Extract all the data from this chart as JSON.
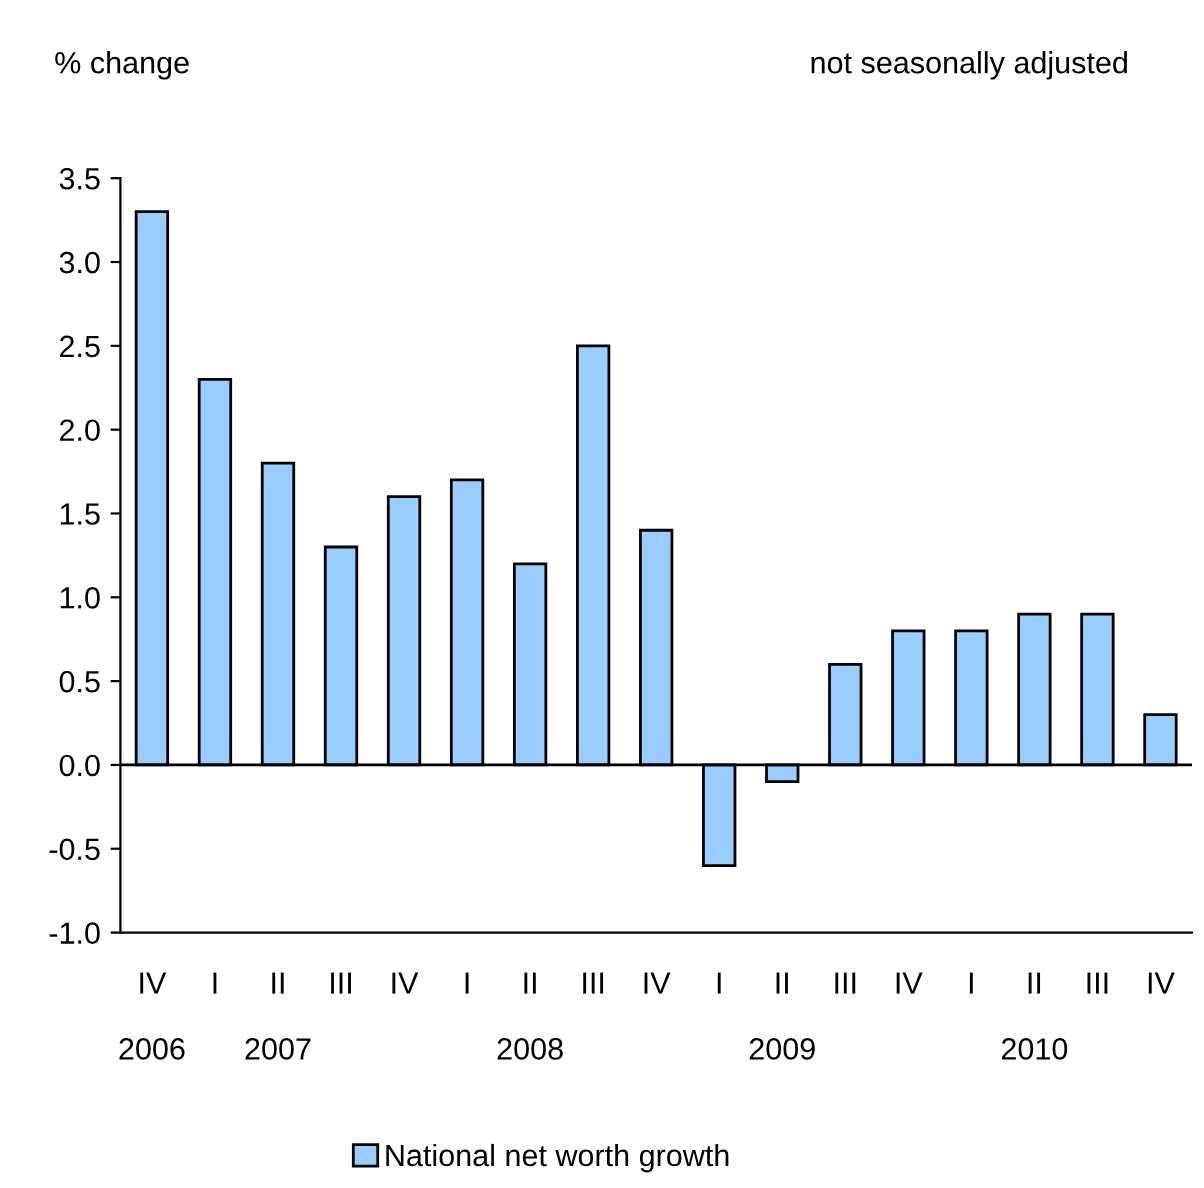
{
  "chart_data": {
    "type": "bar",
    "ylabel": "% change",
    "subtitle": "not seasonally adjusted",
    "categories": [
      "IV\n\n2006",
      "I",
      "II\n\n2007",
      "III",
      "IV",
      "I",
      "II\n\n2008",
      "III",
      "IV",
      "I",
      "II\n\n2009",
      "III",
      "IV",
      "I",
      "II\n\n2010",
      "III",
      "IV"
    ],
    "series": [
      {
        "name": "National net worth growth",
        "color": "#99ccff",
        "values": [
          3.3,
          2.3,
          1.8,
          1.3,
          1.6,
          1.7,
          1.2,
          2.5,
          1.4,
          -0.6,
          -0.1,
          0.6,
          0.8,
          0.8,
          0.9,
          0.9,
          0.3
        ]
      }
    ],
    "ylim": [
      -1.0,
      3.5
    ],
    "yticks": [
      {
        "value": -1.0,
        "label": "-1.0"
      },
      {
        "value": -0.5,
        "label": "-0.5"
      },
      {
        "value": 0.0,
        "label": "0.0"
      },
      {
        "value": 0.5,
        "label": "0.5"
      },
      {
        "value": 1.0,
        "label": "1.0"
      },
      {
        "value": 1.5,
        "label": "1.5"
      },
      {
        "value": 2.0,
        "label": "2.0"
      },
      {
        "value": 2.5,
        "label": "2.5"
      },
      {
        "value": 3.0,
        "label": "3.0"
      },
      {
        "value": 3.5,
        "label": "3.5"
      }
    ],
    "legend": "bottom"
  }
}
